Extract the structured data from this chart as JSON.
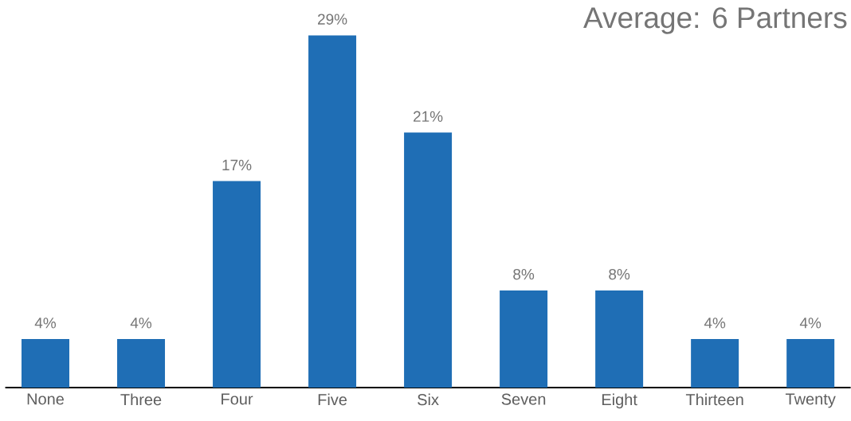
{
  "chart_data": {
    "type": "bar",
    "title": "Average: 6 Partners",
    "categories": [
      "None",
      "Three",
      "Four",
      "Five",
      "Six",
      "Seven",
      "Eight",
      "Thirteen",
      "Twenty"
    ],
    "values": [
      4,
      4,
      17,
      29,
      21,
      8,
      8,
      4,
      4
    ],
    "value_labels": [
      "4%",
      "4%",
      "17%",
      "29%",
      "21%",
      "8%",
      "8%",
      "4%",
      "4%"
    ],
    "color": "#1f6eb5"
  }
}
